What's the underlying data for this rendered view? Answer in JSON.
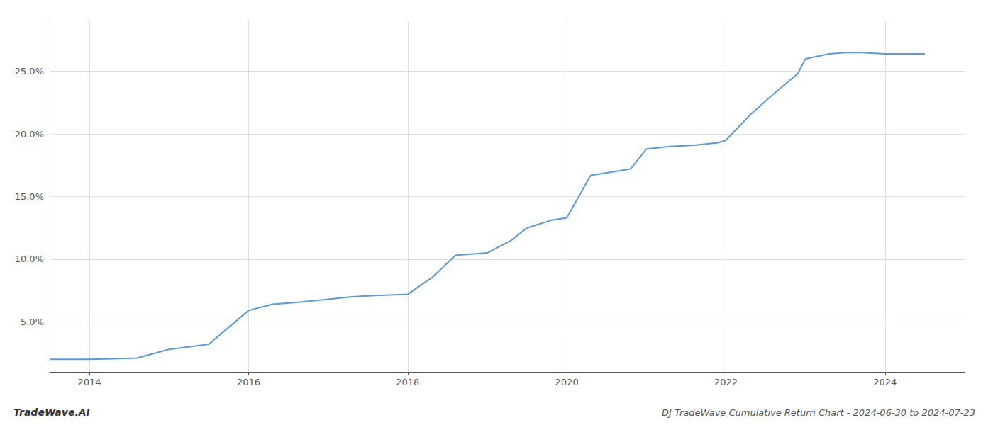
{
  "chart_data": {
    "type": "line",
    "title": "DJ TradeWave Cumulative Return Chart - 2024-06-30 to 2024-07-23",
    "annotations": [
      "TradeWave.AI"
    ],
    "color": "#5b9bd5",
    "x": [
      2013.5,
      2014.0,
      2014.3,
      2014.6,
      2015.0,
      2015.5,
      2016.0,
      2016.3,
      2016.6,
      2017.0,
      2017.3,
      2017.6,
      2018.0,
      2018.3,
      2018.6,
      2019.0,
      2019.3,
      2019.5,
      2019.8,
      2020.0,
      2020.3,
      2020.6,
      2020.8,
      2021.0,
      2021.3,
      2021.6,
      2021.9,
      2022.0,
      2022.3,
      2022.6,
      2022.9,
      2023.0,
      2023.3,
      2023.5,
      2023.7,
      2024.0,
      2024.5
    ],
    "values": [
      2.0,
      2.0,
      2.05,
      2.1,
      2.8,
      3.2,
      5.9,
      6.4,
      6.55,
      6.8,
      7.0,
      7.1,
      7.2,
      8.5,
      10.3,
      10.5,
      11.5,
      12.5,
      13.1,
      13.3,
      16.7,
      17.0,
      17.2,
      18.8,
      19.0,
      19.1,
      19.3,
      19.5,
      21.5,
      23.2,
      24.8,
      26.0,
      26.4,
      26.5,
      26.5,
      26.4,
      26.4
    ],
    "xlim": [
      2013.5,
      2025.0
    ],
    "ylim": [
      1.0,
      29.0
    ],
    "xticks": [
      2014,
      2016,
      2018,
      2020,
      2022,
      2024
    ],
    "yticks": [
      {
        "value": 5.0,
        "label": "5.0%"
      },
      {
        "value": 10.0,
        "label": "10.0%"
      },
      {
        "value": 15.0,
        "label": "15.0%"
      },
      {
        "value": 20.0,
        "label": "20.0%"
      },
      {
        "value": 25.0,
        "label": "25.0%"
      }
    ],
    "grid": true
  }
}
